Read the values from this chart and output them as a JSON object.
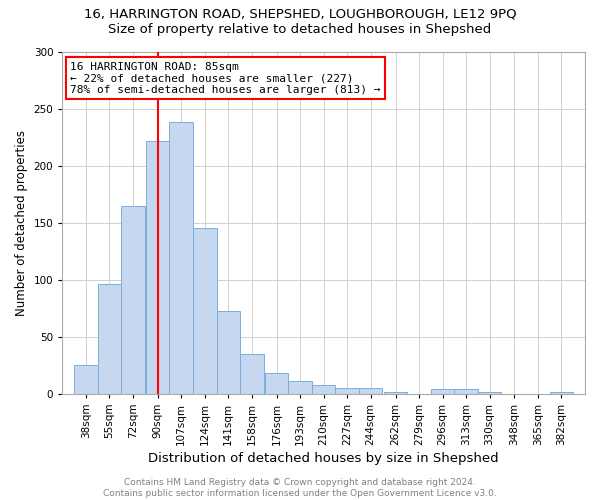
{
  "title1": "16, HARRINGTON ROAD, SHEPSHED, LOUGHBOROUGH, LE12 9PQ",
  "title2": "Size of property relative to detached houses in Shepshed",
  "xlabel": "Distribution of detached houses by size in Shepshed",
  "ylabel": "Number of detached properties",
  "categories": [
    "38sqm",
    "55sqm",
    "72sqm",
    "90sqm",
    "107sqm",
    "124sqm",
    "141sqm",
    "158sqm",
    "176sqm",
    "193sqm",
    "210sqm",
    "227sqm",
    "244sqm",
    "262sqm",
    "279sqm",
    "296sqm",
    "313sqm",
    "330sqm",
    "348sqm",
    "365sqm",
    "382sqm"
  ],
  "values": [
    25,
    96,
    165,
    222,
    238,
    145,
    73,
    35,
    18,
    11,
    8,
    5,
    5,
    2,
    0,
    4,
    4,
    2,
    0,
    0,
    2
  ],
  "bar_color": "#c5d8f0",
  "bar_edge_color": "#7aafda",
  "vline_color": "red",
  "vline_x": 90,
  "annotation_text": "16 HARRINGTON ROAD: 85sqm\n← 22% of detached houses are smaller (227)\n78% of semi-detached houses are larger (813) →",
  "annotation_box_color": "white",
  "annotation_box_edge_color": "red",
  "ylim": [
    0,
    300
  ],
  "yticks": [
    0,
    50,
    100,
    150,
    200,
    250,
    300
  ],
  "background_color": "white",
  "grid_color": "#d0d0d0",
  "footer_text": "Contains HM Land Registry data © Crown copyright and database right 2024.\nContains public sector information licensed under the Open Government Licence v3.0.",
  "title1_fontsize": 9.5,
  "title2_fontsize": 9.5,
  "xlabel_fontsize": 9.5,
  "ylabel_fontsize": 8.5,
  "tick_fontsize": 7.5,
  "annotation_fontsize": 8,
  "footer_fontsize": 6.5,
  "bin_width": 17
}
